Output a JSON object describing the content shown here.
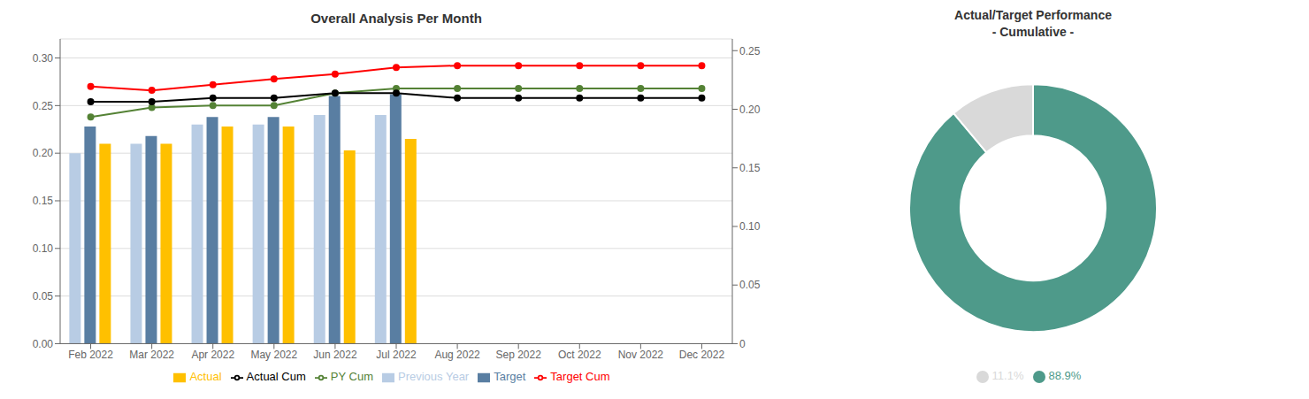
{
  "chart_data": [
    {
      "type": "bar",
      "title": "Overall Analysis Per Month",
      "categories": [
        "Feb 2022",
        "Mar 2022",
        "Apr 2022",
        "May 2022",
        "Jun 2022",
        "Jul 2022",
        "Aug 2022",
        "Sep 2022",
        "Oct 2022",
        "Nov 2022",
        "Dec 2022"
      ],
      "series": [
        {
          "name": "Previous Year",
          "type": "bar",
          "color": "#b8cce4",
          "values": [
            0.2,
            0.21,
            0.23,
            0.23,
            0.24,
            0.24,
            null,
            null,
            null,
            null,
            null
          ]
        },
        {
          "name": "Target",
          "type": "bar",
          "color": "#597ea2",
          "values": [
            0.228,
            0.218,
            0.238,
            0.238,
            0.26,
            0.262,
            null,
            null,
            null,
            null,
            null
          ]
        },
        {
          "name": "Actual",
          "type": "bar",
          "color": "#ffc000",
          "values": [
            0.21,
            0.21,
            0.228,
            0.228,
            0.203,
            0.215,
            null,
            null,
            null,
            null,
            null
          ]
        },
        {
          "name": "PY Cum",
          "type": "line",
          "marker": "circle",
          "color": "#548235",
          "values": [
            0.238,
            0.248,
            0.25,
            0.25,
            0.263,
            0.268,
            0.268,
            0.268,
            0.268,
            0.268,
            0.268
          ]
        },
        {
          "name": "Target Cum",
          "type": "line",
          "marker": "circle",
          "color": "#ff0000",
          "values": [
            0.27,
            0.266,
            0.272,
            0.278,
            0.283,
            0.29,
            0.292,
            0.292,
            0.292,
            0.292,
            0.292
          ]
        },
        {
          "name": "Actual Cum",
          "type": "line",
          "marker": "circle",
          "color": "#000000",
          "values": [
            0.254,
            0.254,
            0.258,
            0.258,
            0.263,
            0.263,
            0.258,
            0.258,
            0.258,
            0.258,
            0.258
          ]
        }
      ],
      "ylim": [
        0.0,
        0.32
      ],
      "yticks": [
        {
          "value": 0,
          "label": "0.00"
        },
        0.05,
        {
          "value": 0.1,
          "label": "0.10"
        },
        0.15,
        {
          "value": 0.2,
          "label": "0.20"
        },
        0.25,
        {
          "value": 0.3,
          "label": "0.30"
        }
      ],
      "y2lim": [
        0,
        0.26
      ],
      "y2ticks": [
        0,
        0.05,
        {
          "value": 0.1,
          "label": "0.10"
        },
        0.15,
        {
          "value": 0.2,
          "label": "0.20"
        },
        0.25
      ],
      "grid": true,
      "legend": "bottom"
    },
    {
      "type": "donut",
      "title": "Actual/Target Performance\n- Cumulative -",
      "categories": [
        "88.9%",
        "11.1%"
      ],
      "values": [
        88.9,
        11.1
      ],
      "colors": [
        "#4e9a8a",
        "#d9d9d9"
      ],
      "legend": "bottom"
    }
  ]
}
